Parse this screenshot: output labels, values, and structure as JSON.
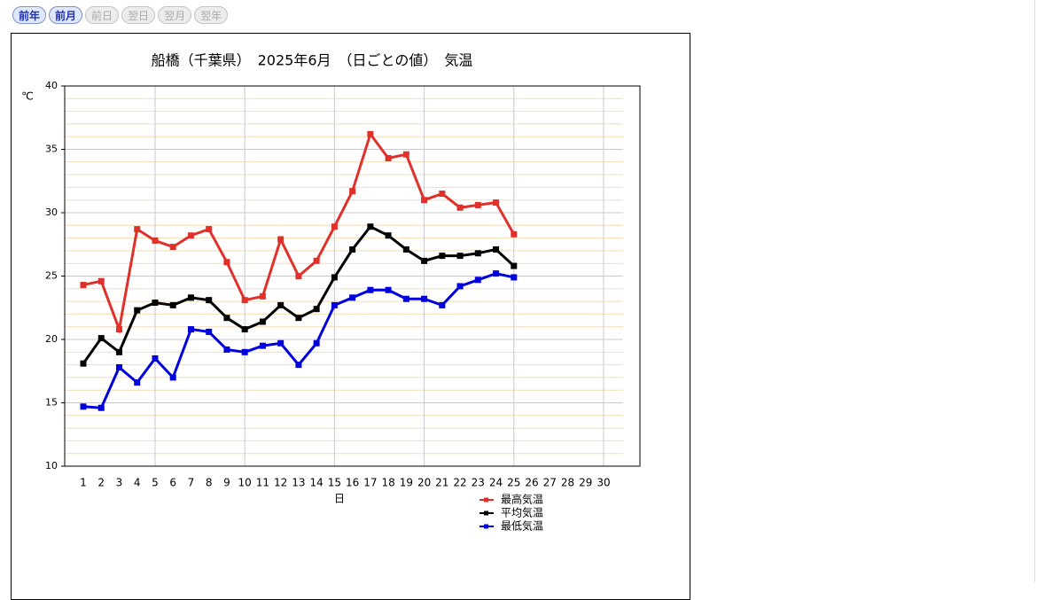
{
  "nav": [
    {
      "label": "前年",
      "enabled": true
    },
    {
      "label": "前月",
      "enabled": true
    },
    {
      "label": "前日",
      "enabled": false
    },
    {
      "label": "翌日",
      "enabled": false
    },
    {
      "label": "翌月",
      "enabled": false
    },
    {
      "label": "翌年",
      "enabled": false
    }
  ],
  "chart_data": {
    "type": "line",
    "title": "船橋（千葉県）　2025年6月　（日ごとの値）　気温",
    "xlabel": "日",
    "ylabel": "℃",
    "categories": [
      "1",
      "2",
      "3",
      "4",
      "5",
      "6",
      "7",
      "8",
      "9",
      "10",
      "11",
      "12",
      "13",
      "14",
      "15",
      "16",
      "17",
      "18",
      "19",
      "20",
      "21",
      "22",
      "23",
      "24",
      "25",
      "26",
      "27",
      "28",
      "29",
      "30"
    ],
    "ylim": [
      10,
      40
    ],
    "yticks": [
      10,
      15,
      20,
      25,
      30,
      35,
      40
    ],
    "yminorticks": [
      11,
      12,
      13,
      14,
      16,
      17,
      18,
      19,
      21,
      22,
      23,
      24,
      26,
      27,
      28,
      29,
      31,
      32,
      33,
      34,
      36,
      37,
      38,
      39
    ],
    "xmajorgrid": [
      "5",
      "10",
      "15",
      "20",
      "25",
      "30"
    ],
    "grid": true,
    "series": [
      {
        "name": "最高気温",
        "color": "#e0302a",
        "values": [
          24.3,
          24.6,
          20.8,
          28.7,
          27.8,
          27.3,
          28.2,
          28.7,
          26.1,
          23.1,
          23.4,
          27.9,
          25.0,
          26.2,
          28.9,
          31.7,
          36.2,
          34.3,
          34.6,
          31.0,
          31.5,
          30.4,
          30.6,
          30.8,
          28.3,
          null,
          null,
          null,
          null,
          null
        ]
      },
      {
        "name": "平均気温",
        "color": "#000000",
        "values": [
          18.1,
          20.1,
          19.0,
          22.3,
          22.9,
          22.7,
          23.3,
          23.1,
          21.7,
          20.8,
          21.4,
          22.7,
          21.7,
          22.4,
          24.9,
          27.1,
          28.9,
          28.2,
          27.1,
          26.2,
          26.6,
          26.6,
          26.8,
          27.1,
          25.8,
          null,
          null,
          null,
          null,
          null
        ]
      },
      {
        "name": "最低気温",
        "color": "#0000dd",
        "values": [
          14.7,
          14.6,
          17.8,
          16.6,
          18.5,
          17.0,
          20.8,
          20.6,
          19.2,
          19.0,
          19.5,
          19.7,
          18.0,
          19.7,
          22.7,
          23.3,
          23.9,
          23.9,
          23.2,
          23.2,
          22.7,
          24.2,
          24.7,
          25.2,
          24.9,
          null,
          null,
          null,
          null,
          null
        ]
      }
    ]
  }
}
